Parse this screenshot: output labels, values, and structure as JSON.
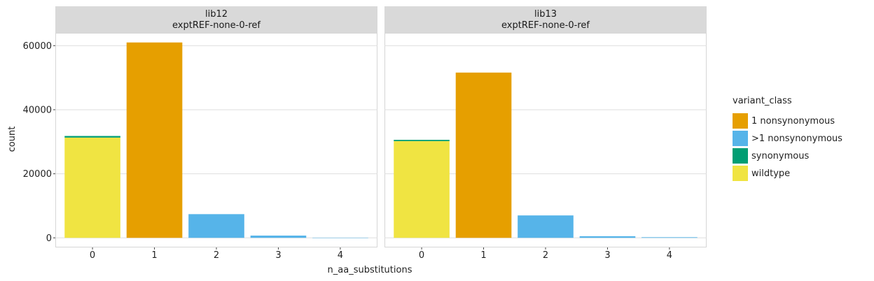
{
  "chart_data": {
    "type": "bar",
    "stacked": true,
    "xlabel": "n_aa_substitutions",
    "ylabel": "count",
    "categories": [
      "0",
      "1",
      "2",
      "3",
      "4"
    ],
    "y_ticks": [
      "0",
      "20000",
      "40000",
      "60000"
    ],
    "y_tick_values": [
      0,
      20000,
      40000,
      60000
    ],
    "ylim": [
      -3000,
      64000
    ],
    "grid": true,
    "legend": {
      "title": "variant_class",
      "placement": "right",
      "entries": [
        {
          "label": "1 nonsynonymous",
          "color": "#E69F00"
        },
        {
          "label": ">1 nonsynonymous",
          "color": "#56B4E9"
        },
        {
          "label": "synonymous",
          "color": "#009E73"
        },
        {
          "label": "wildtype",
          "color": "#F0E442"
        }
      ]
    },
    "panels": [
      {
        "strip_line1": "lib12",
        "strip_line2": "exptREF-none-0-ref",
        "series": [
          {
            "name": "wildtype",
            "values": [
              31300,
              0,
              0,
              0,
              0
            ]
          },
          {
            "name": "synonymous",
            "values": [
              500,
              0,
              0,
              0,
              0
            ]
          },
          {
            "name": "1 nonsynonymous",
            "values": [
              0,
              61000,
              0,
              0,
              0
            ]
          },
          {
            "name": ">1 nonsynonymous",
            "values": [
              0,
              0,
              7400,
              700,
              60
            ]
          }
        ]
      },
      {
        "strip_line1": "lib13",
        "strip_line2": "exptREF-none-0-ref",
        "series": [
          {
            "name": "wildtype",
            "values": [
              30200,
              0,
              0,
              0,
              0
            ]
          },
          {
            "name": "synonymous",
            "values": [
              400,
              0,
              0,
              0,
              0
            ]
          },
          {
            "name": "1 nonsynonymous",
            "values": [
              0,
              51600,
              0,
              0,
              0
            ]
          },
          {
            "name": ">1 nonsynonymous",
            "values": [
              0,
              0,
              7000,
              500,
              200
            ]
          }
        ]
      }
    ]
  }
}
